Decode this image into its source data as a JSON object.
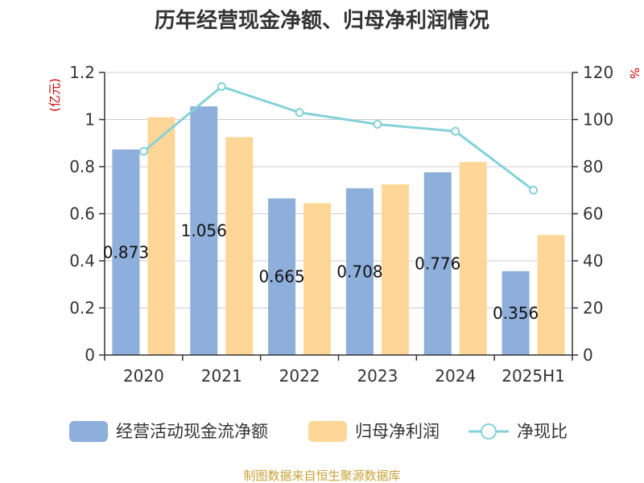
{
  "colors": {
    "bar_cash": "#8eaedb",
    "bar_profit": "#fed798",
    "line_ratio": "#85d2d8",
    "unit": "#cc0000",
    "source": "#c9a23a",
    "axis": "#333333",
    "grid": "#cccccc"
  },
  "chart_data": {
    "type": "bar",
    "title": "历年经营现金净额、归母净利润情况",
    "categories": [
      "2020",
      "2021",
      "2022",
      "2023",
      "2024",
      "2025H1"
    ],
    "left_axis": {
      "unit_label": "(亿元)",
      "ylim": [
        0,
        1.2
      ],
      "ticks": [
        0,
        0.2,
        0.4,
        0.6,
        0.8,
        1.0,
        1.2
      ],
      "tick_labels": [
        "0",
        "0.2",
        "0.4",
        "0.6",
        "0.8",
        "1",
        "1.2"
      ]
    },
    "right_axis": {
      "unit_label": "%",
      "ylim": [
        0,
        120
      ],
      "ticks": [
        0,
        20,
        40,
        60,
        80,
        100,
        120
      ],
      "tick_labels": [
        "0",
        "20",
        "40",
        "60",
        "80",
        "100",
        "120"
      ]
    },
    "grid": true,
    "legend_position": "bottom",
    "series": [
      {
        "name": "经营活动现金流净额",
        "type": "bar",
        "axis": "left",
        "values": [
          0.873,
          1.056,
          0.665,
          0.708,
          0.776,
          0.356
        ],
        "labels": [
          "0.873",
          "1.056",
          "0.665",
          "0.708",
          "0.776",
          "0.356"
        ]
      },
      {
        "name": "归母净利润",
        "type": "bar",
        "axis": "left",
        "values": [
          1.01,
          0.925,
          0.645,
          0.725,
          0.82,
          0.51
        ]
      },
      {
        "name": "净现比",
        "type": "line",
        "axis": "right",
        "values": [
          86.5,
          114.0,
          103.0,
          98.0,
          95.0,
          70.0
        ]
      }
    ]
  },
  "source": "制图数据来自恒生聚源数据库"
}
